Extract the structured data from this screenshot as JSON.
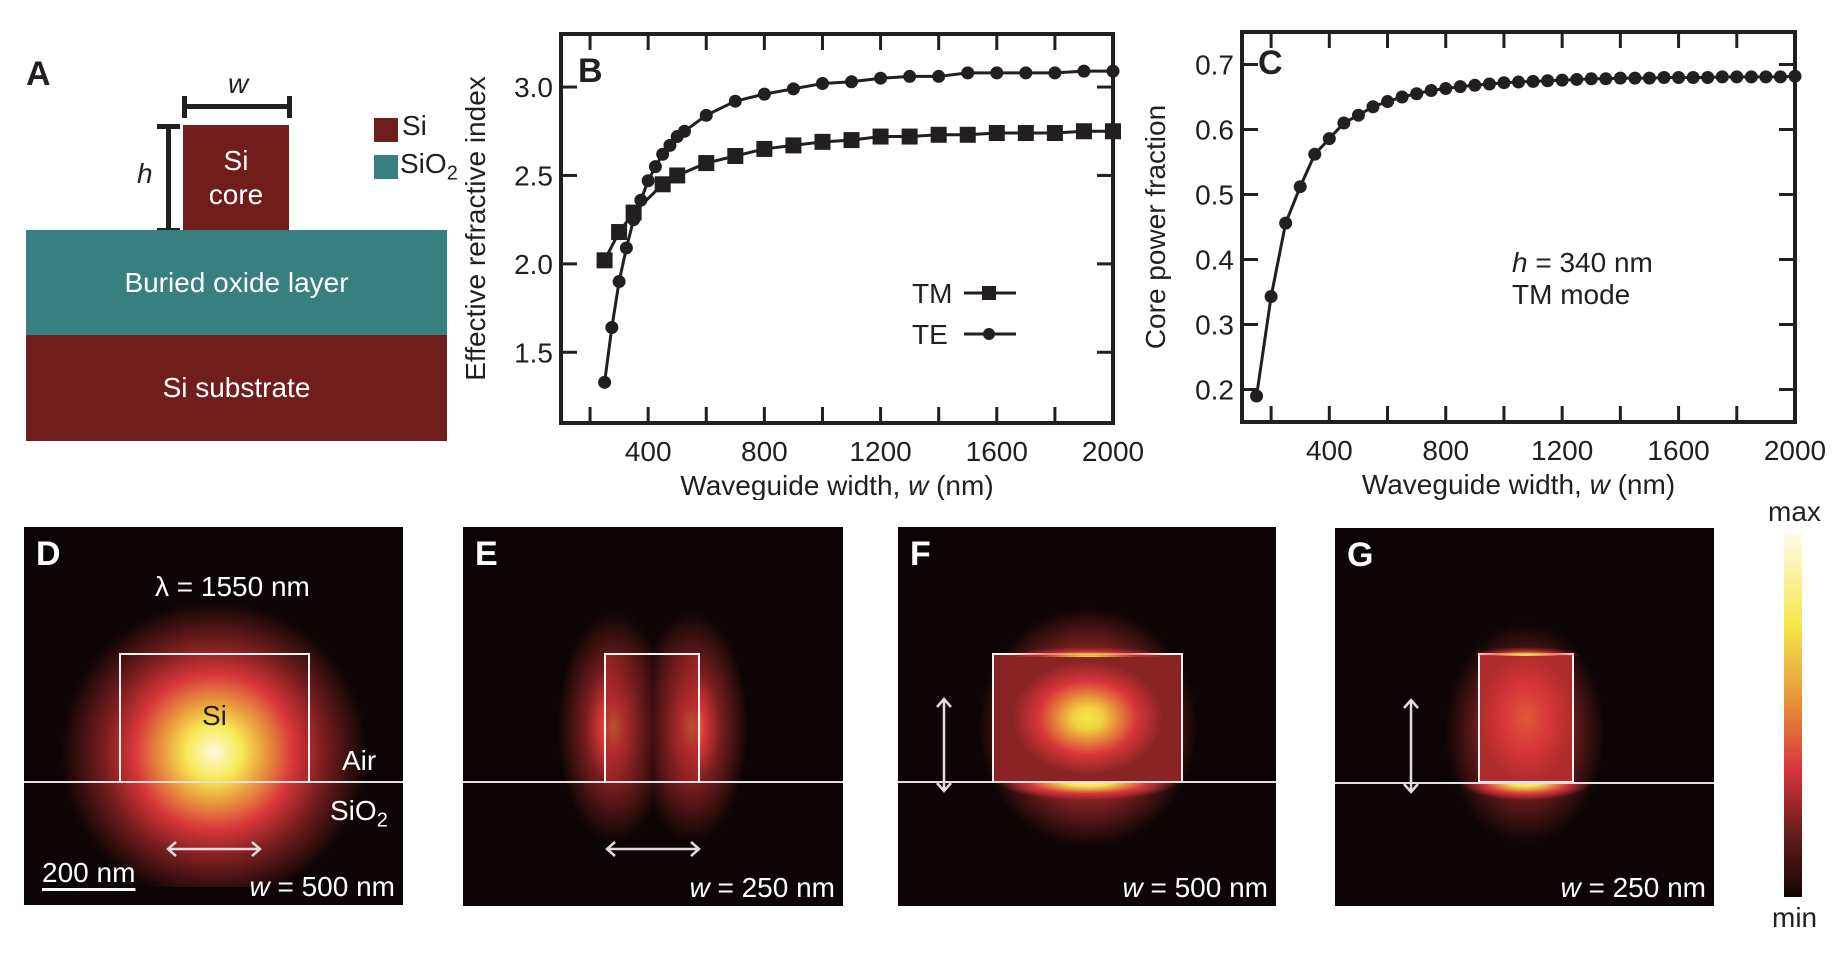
{
  "panel_a": {
    "label": "A",
    "w_symbol": "w",
    "h_symbol": "h",
    "core_label_line1": "Si",
    "core_label_line2": "core",
    "box_label": "Buried oxide layer",
    "substrate_label": "Si substrate",
    "legend": [
      {
        "label": "Si",
        "color": "#6f1e1c"
      },
      {
        "label": "SiO",
        "sub": "2",
        "color": "#377f80"
      }
    ]
  },
  "chart_data": [
    {
      "panel": "B",
      "type": "line",
      "xlabel_prefix": "Waveguide width, ",
      "xlabel_var": "w",
      "xlabel_suffix": " (nm)",
      "ylabel": "Effective refractive index",
      "xlim": [
        100,
        2000
      ],
      "ylim": [
        1.1,
        3.3
      ],
      "xticks": [
        400,
        800,
        1200,
        1600,
        2000
      ],
      "xticks_minor": [
        200,
        400,
        600,
        800,
        1000,
        1200,
        1400,
        1600,
        1800
      ],
      "yticks": [
        1.5,
        2.0,
        2.5,
        3.0
      ],
      "ytick_labels": [
        "1.5",
        "2.0",
        "2.5",
        "3.0"
      ],
      "grid": false,
      "legend_position": "lower-right",
      "series": [
        {
          "name": "TM",
          "marker": "square",
          "x": [
            250,
            300,
            350,
            450,
            500,
            600,
            700,
            800,
            900,
            1000,
            1100,
            1200,
            1300,
            1400,
            1500,
            1600,
            1700,
            1800,
            1900,
            2000
          ],
          "y": [
            2.02,
            2.18,
            2.29,
            2.45,
            2.5,
            2.57,
            2.61,
            2.65,
            2.67,
            2.69,
            2.7,
            2.72,
            2.72,
            2.73,
            2.73,
            2.74,
            2.74,
            2.74,
            2.75,
            2.75
          ]
        },
        {
          "name": "TE",
          "marker": "circle",
          "x": [
            250,
            275,
            300,
            325,
            350,
            375,
            400,
            425,
            450,
            475,
            500,
            525,
            600,
            700,
            800,
            900,
            1000,
            1100,
            1200,
            1300,
            1400,
            1500,
            1600,
            1700,
            1800,
            1900,
            2000
          ],
          "y": [
            1.33,
            1.64,
            1.9,
            2.09,
            2.25,
            2.36,
            2.47,
            2.55,
            2.62,
            2.67,
            2.72,
            2.75,
            2.84,
            2.92,
            2.96,
            2.99,
            3.02,
            3.03,
            3.05,
            3.06,
            3.06,
            3.08,
            3.08,
            3.08,
            3.08,
            3.09,
            3.09
          ]
        }
      ]
    },
    {
      "panel": "C",
      "type": "line",
      "xlabel_prefix": "Waveguide width, ",
      "xlabel_var": "w",
      "xlabel_suffix": " (nm)",
      "ylabel": "Core power fraction",
      "xlim": [
        100,
        2000
      ],
      "ylim": [
        0.15,
        0.75
      ],
      "xticks": [
        400,
        800,
        1200,
        1600,
        2000
      ],
      "xticks_minor": [
        200,
        400,
        600,
        800,
        1000,
        1200,
        1400,
        1600,
        1800
      ],
      "yticks": [
        0.2,
        0.3,
        0.4,
        0.5,
        0.6,
        0.7
      ],
      "ytick_labels": [
        "0.2",
        "0.3",
        "0.4",
        "0.5",
        "0.6",
        "0.7"
      ],
      "grid": false,
      "annotation_var": "h",
      "annotation_line1": " = 340 nm",
      "annotation_line2": "TM mode",
      "series": [
        {
          "name": "TM",
          "marker": "circle",
          "x": [
            150,
            200,
            250,
            300,
            350,
            400,
            450,
            500,
            550,
            600,
            650,
            700,
            750,
            800,
            850,
            900,
            950,
            1000,
            1050,
            1100,
            1150,
            1200,
            1250,
            1300,
            1350,
            1400,
            1450,
            1500,
            1550,
            1600,
            1650,
            1700,
            1750,
            1800,
            1850,
            1900,
            1950,
            2000
          ],
          "y": [
            0.19,
            0.343,
            0.456,
            0.512,
            0.562,
            0.586,
            0.61,
            0.622,
            0.635,
            0.643,
            0.65,
            0.655,
            0.66,
            0.663,
            0.666,
            0.668,
            0.67,
            0.672,
            0.673,
            0.674,
            0.675,
            0.676,
            0.677,
            0.678,
            0.678,
            0.679,
            0.679,
            0.679,
            0.68,
            0.68,
            0.68,
            0.68,
            0.681,
            0.681,
            0.681,
            0.681,
            0.681,
            0.682
          ]
        }
      ]
    }
  ],
  "field_panels": [
    {
      "label": "D",
      "w_text": " = 500 nm",
      "wavelength_text": "λ = 1550 nm",
      "core_text": "Si",
      "air_text": "Air",
      "sio2_text": "SiO",
      "sio2_sub": "2",
      "scalebar_text": "200 nm",
      "polarization": "horizontal"
    },
    {
      "label": "E",
      "w_text": " = 250 nm",
      "polarization": "horizontal"
    },
    {
      "label": "F",
      "w_text": " = 500 nm",
      "polarization": "vertical"
    },
    {
      "label": "G",
      "w_text": " = 250 nm",
      "polarization": "vertical"
    }
  ],
  "colorbar": {
    "max_label": "max",
    "min_label": "min",
    "colors": [
      "#fffbea",
      "#f5e84a",
      "#e8983a",
      "#d8363a",
      "#6a1c1c",
      "#120606"
    ]
  },
  "colors": {
    "si": "#6f1e1c",
    "sio2": "#377f80",
    "ink": "#231f20",
    "field_bg": "#0d0505"
  }
}
